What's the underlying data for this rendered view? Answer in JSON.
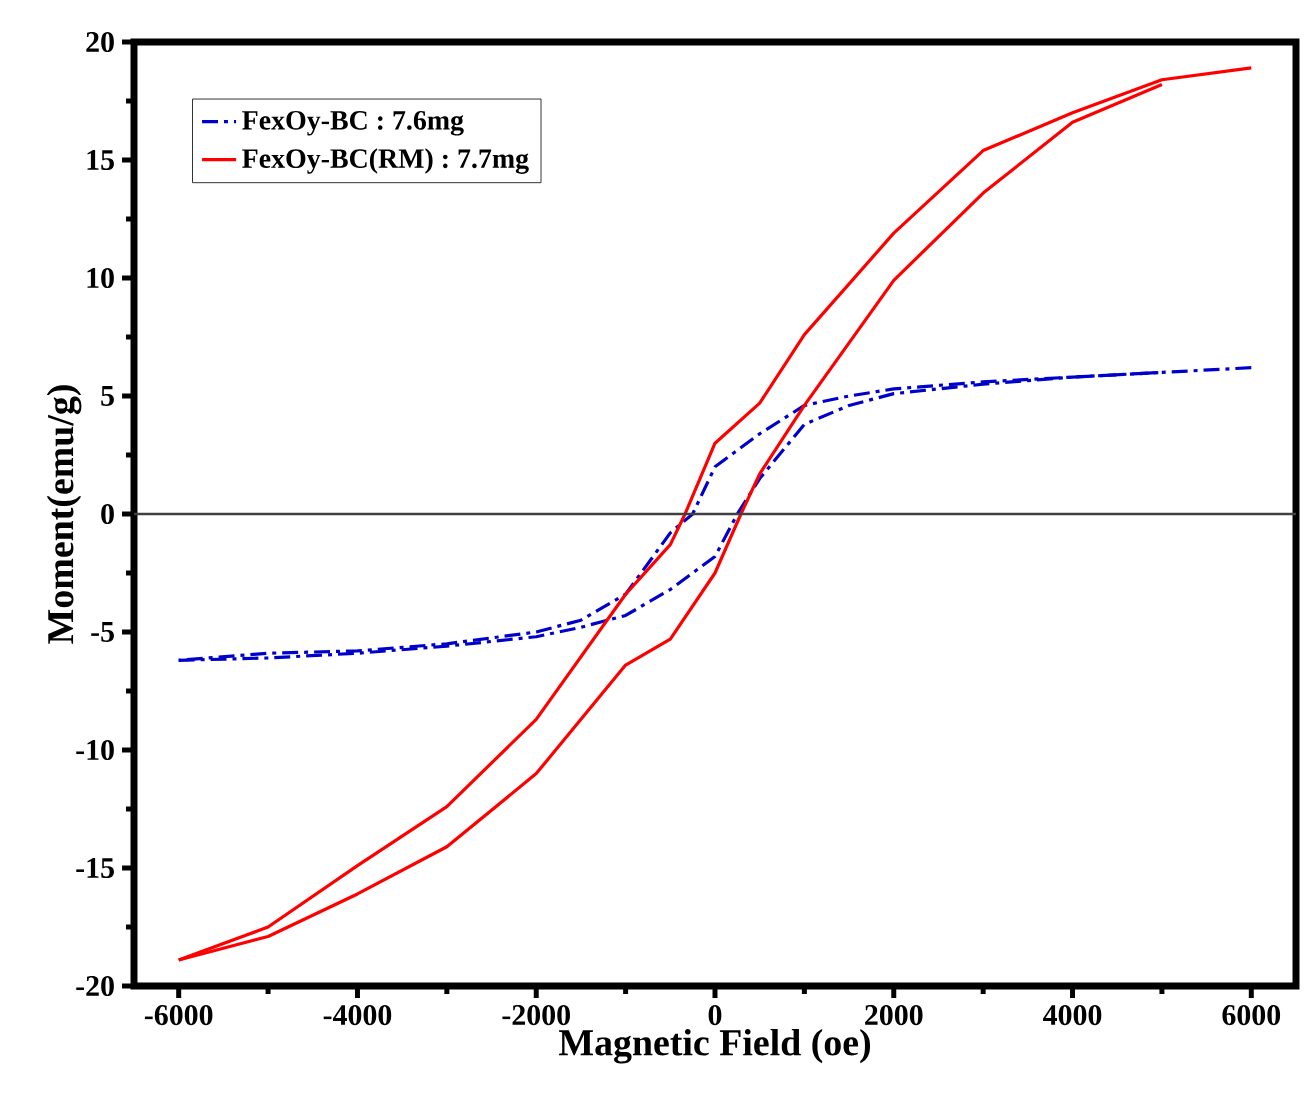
{
  "chart_data": {
    "type": "line",
    "xlabel": "Magnetic Field (oe)",
    "ylabel": "Moment(emu/g)",
    "xlim": [
      -6500,
      6500
    ],
    "ylim": [
      -20,
      20
    ],
    "xticks": [
      -6000,
      -4000,
      -2000,
      0,
      2000,
      4000,
      6000
    ],
    "yticks": [
      -20,
      -15,
      -10,
      -5,
      0,
      5,
      10,
      15,
      20
    ],
    "grid": false,
    "legend": "top left",
    "marker": "none",
    "ref_lines": [
      {
        "axis": "y",
        "value": 0,
        "color": "#404040"
      }
    ],
    "series": [
      {
        "name": "FexOy-BC : 7.6mg",
        "color": "#0000cc",
        "line_style": "dashdot",
        "x": [
          6000,
          5000,
          4000,
          3000,
          2000,
          1500,
          1000,
          500,
          0,
          -250,
          -500,
          -1000,
          -1500,
          -2000,
          -3000,
          -4000,
          -5000,
          -6000
        ],
        "values": [
          6.2,
          6.0,
          5.8,
          5.6,
          5.3,
          5.0,
          4.6,
          3.4,
          2.0,
          0,
          -0.8,
          -3.4,
          -4.5,
          -5.0,
          -5.5,
          -5.8,
          -5.9,
          -6.2
        ]
      },
      {
        "color": "#0000cc",
        "line_style": "dashdot",
        "x": [
          -6000,
          -5000,
          -4000,
          -3000,
          -2000,
          -1500,
          -1000,
          -500,
          0,
          250,
          500,
          1000,
          1500,
          2000,
          3000,
          4000,
          5000
        ],
        "values": [
          -6.2,
          -6.1,
          -5.9,
          -5.6,
          -5.2,
          -4.8,
          -4.3,
          -3.2,
          -1.8,
          0,
          1.5,
          3.8,
          4.6,
          5.1,
          5.5,
          5.8,
          6.0
        ]
      },
      {
        "name": "FexOy-BC(RM) : 7.7mg",
        "color": "#ff0000",
        "line_style": "solid",
        "x": [
          6000,
          5000,
          4000,
          3000,
          2000,
          1000,
          500,
          0,
          -335,
          -500,
          -1000,
          -2000,
          -3000,
          -4000,
          -5000,
          -6000
        ],
        "values": [
          18.9,
          18.4,
          17.0,
          15.4,
          11.9,
          7.6,
          4.7,
          3.0,
          0,
          -1.3,
          -3.4,
          -8.7,
          -12.4,
          -14.9,
          -17.5,
          -18.9
        ]
      },
      {
        "color": "#ff0000",
        "line_style": "solid",
        "x": [
          -6000,
          -5000,
          -4000,
          -3000,
          -2000,
          -1000,
          -500,
          0,
          290,
          500,
          1000,
          2000,
          3000,
          4000,
          5000
        ],
        "values": [
          -18.9,
          -17.9,
          -16.1,
          -14.1,
          -11.0,
          -6.4,
          -5.3,
          -2.5,
          0,
          1.7,
          4.6,
          9.9,
          13.6,
          16.6,
          18.2
        ]
      }
    ]
  }
}
